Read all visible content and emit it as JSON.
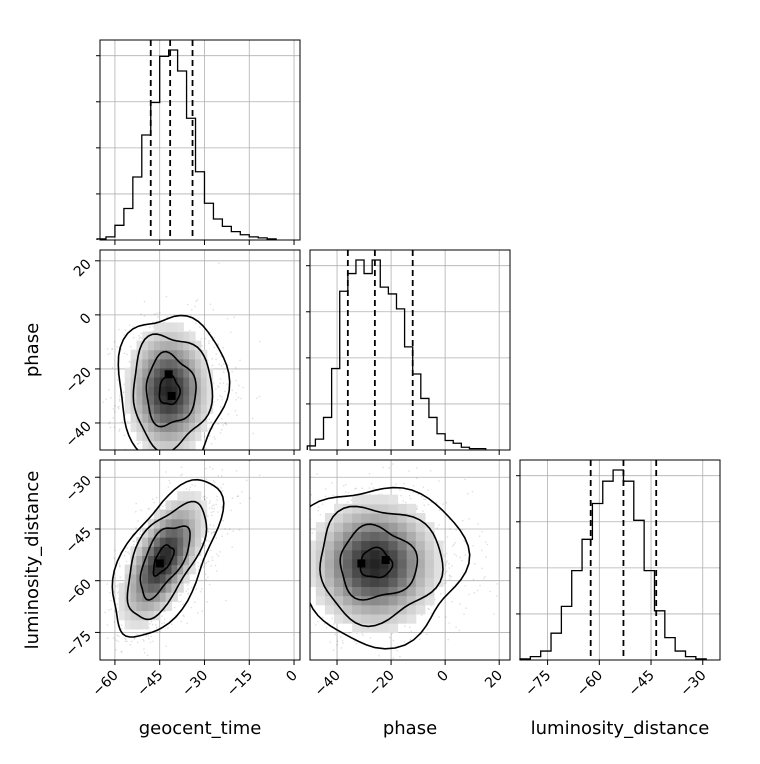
{
  "chart_data": {
    "type": "corner",
    "parameters": [
      "geocent_time",
      "phase",
      "luminosity_distance"
    ],
    "axes": {
      "geocent_time": {
        "range": [
          -65,
          2
        ],
        "ticks": [
          -60,
          -45,
          -30,
          -15,
          0
        ],
        "tick_labels": [
          "−60",
          "−45",
          "−30",
          "−15",
          "0"
        ]
      },
      "phase": {
        "range": [
          -50,
          24
        ],
        "ticks": [
          -40,
          -20,
          0,
          20
        ],
        "tick_labels": [
          "−40",
          "−20",
          "0",
          "20"
        ]
      },
      "luminosity_distance": {
        "range": [
          -83,
          -25
        ],
        "ticks": [
          -75,
          -60,
          -45,
          -30
        ],
        "tick_labels": [
          "−75",
          "−60",
          "−45",
          "−30"
        ]
      }
    },
    "histograms": [
      {
        "parameter": "geocent_time",
        "quantiles": [
          -48,
          -41.5,
          -34
        ],
        "bins": [
          -66,
          -63,
          -60,
          -57,
          -54,
          -51,
          -48,
          -45,
          -42,
          -39,
          -36,
          -33,
          -30,
          -27,
          -24,
          -21,
          -18,
          -15,
          -12,
          -9,
          -6
        ],
        "counts": [
          1,
          3,
          14,
          30,
          60,
          100,
          131,
          175,
          181,
          161,
          116,
          65,
          35,
          20,
          13,
          8,
          5,
          3,
          2,
          1
        ]
      },
      {
        "parameter": "phase",
        "quantiles": [
          -36,
          -26,
          -12
        ],
        "bins": [
          -51,
          -48,
          -45,
          -42,
          -39,
          -36,
          -33,
          -30,
          -27,
          -24,
          -21,
          -18,
          -15,
          -12,
          -9,
          -6,
          -3,
          0,
          3,
          6,
          9,
          12,
          15
        ],
        "counts": [
          3,
          8,
          24,
          60,
          117,
          130,
          140,
          130,
          140,
          120,
          115,
          104,
          76,
          56,
          38,
          24,
          12,
          7,
          5,
          2,
          1,
          1
        ]
      },
      {
        "parameter": "luminosity_distance",
        "quantiles": [
          -62.5,
          -53,
          -43.5
        ],
        "bins": [
          -83,
          -80,
          -77,
          -74,
          -71,
          -68,
          -65,
          -62,
          -59,
          -56,
          -53,
          -50,
          -47,
          -44,
          -41,
          -38,
          -35,
          -32,
          -29
        ],
        "counts": [
          1,
          3,
          8,
          24,
          48,
          80,
          108,
          140,
          160,
          170,
          160,
          125,
          80,
          44,
          20,
          8,
          3,
          1
        ]
      }
    ],
    "joint_2d": [
      {
        "x": "geocent_time",
        "y": "phase",
        "correlation": 0,
        "mode": [
          -42,
          -28
        ],
        "peaks": [
          [
            -42,
            -22
          ],
          [
            -41,
            -30
          ]
        ]
      },
      {
        "x": "geocent_time",
        "y": "luminosity_distance",
        "correlation": 0.6,
        "mode": [
          -44,
          -54
        ],
        "peaks": [
          [
            -45,
            -55
          ]
        ]
      },
      {
        "x": "phase",
        "y": "luminosity_distance",
        "correlation": 0,
        "mode": [
          -26,
          -55
        ],
        "peaks": [
          [
            -31,
            -55
          ],
          [
            -22,
            -54
          ]
        ]
      }
    ],
    "xlabels": [
      "geocent_time",
      "phase",
      "luminosity_distance"
    ],
    "ylabels": [
      "phase",
      "luminosity_distance"
    ],
    "grid": true
  }
}
